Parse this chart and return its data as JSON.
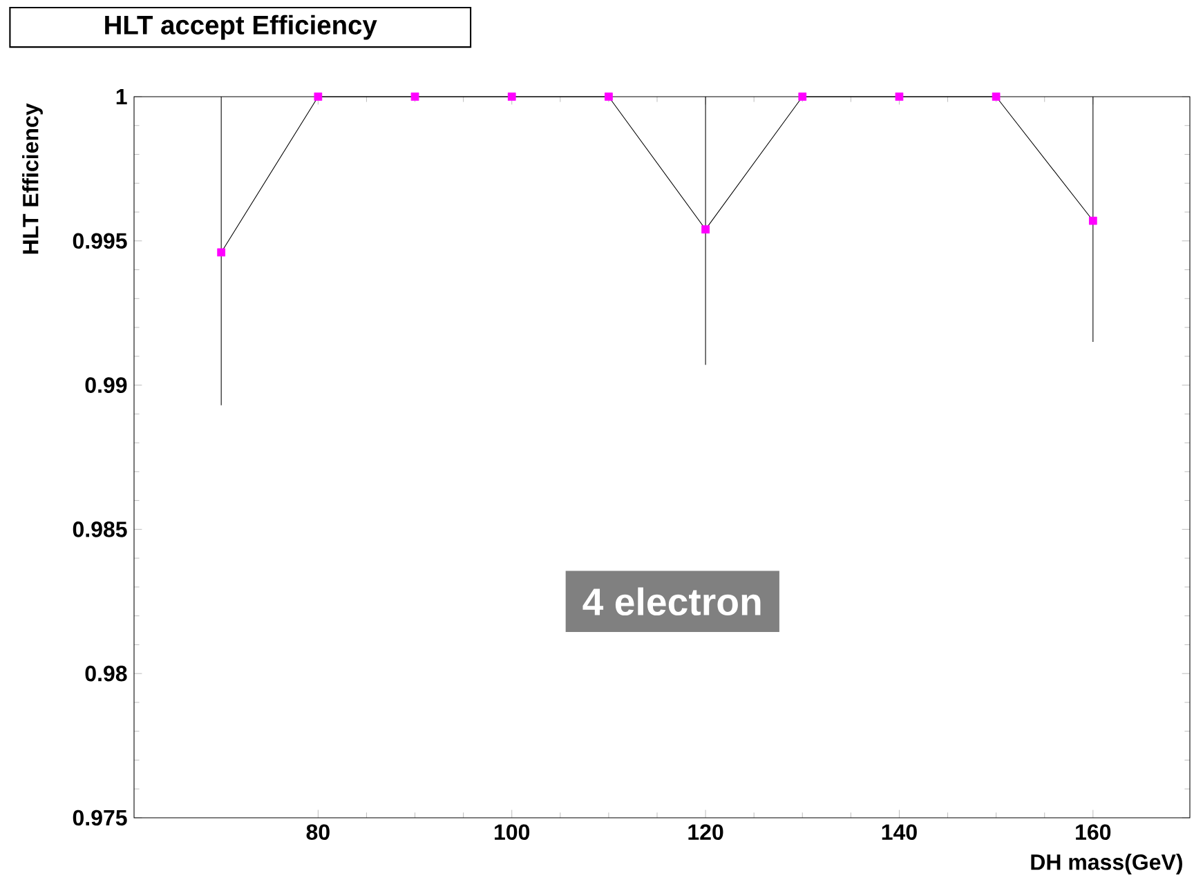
{
  "chart_data": {
    "type": "line",
    "title": "HLT accept Efficiency",
    "xlabel": "DH mass(GeV)",
    "ylabel": "HLT Efficiency",
    "x": [
      70,
      80,
      90,
      100,
      110,
      120,
      130,
      140,
      150,
      160
    ],
    "series": [
      {
        "color": "#ff00ff",
        "values": [
          0.9946,
          1,
          1,
          1,
          1,
          0.9954,
          1,
          1,
          1,
          0.9957
        ],
        "errors": [
          [
            0.9893,
            1
          ],
          null,
          null,
          null,
          null,
          [
            0.9907,
            1
          ],
          null,
          null,
          null,
          [
            0.9915,
            1
          ]
        ]
      }
    ],
    "xlim": [
      61,
      170
    ],
    "xticks": [
      80,
      100,
      120,
      140,
      160
    ],
    "ylim": [
      0.975,
      1
    ],
    "yticks": [
      0.975,
      0.98,
      0.985,
      0.99,
      0.995,
      1
    ],
    "marker": "square",
    "grid": false,
    "annotations": [
      "4 electron"
    ]
  }
}
